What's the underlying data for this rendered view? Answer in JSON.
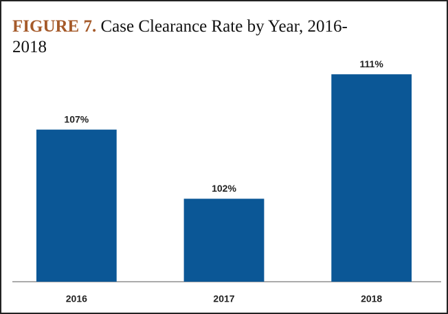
{
  "chart_data": {
    "type": "bar",
    "figure_label": "FIGURE 7.",
    "title": "Case Clearance Rate by Year, 2016-2018",
    "categories": [
      "2016",
      "2017",
      "2018"
    ],
    "values": [
      107,
      102,
      111
    ],
    "value_labels": [
      "107%",
      "102%",
      "111%"
    ],
    "color": "#0b5796",
    "ylim": [
      96,
      112
    ]
  }
}
